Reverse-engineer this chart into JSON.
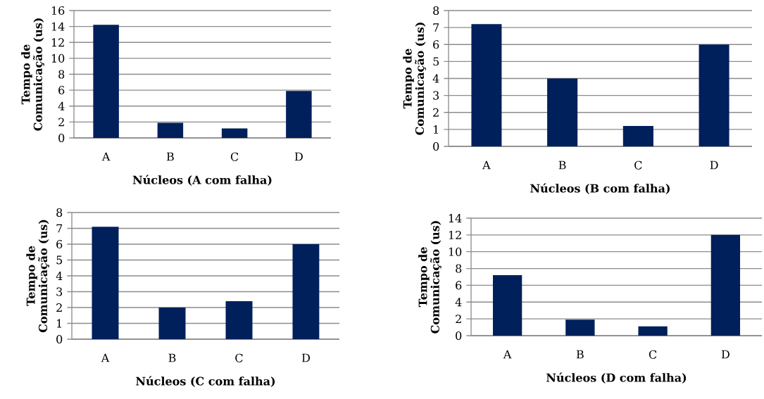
{
  "chart_data": [
    {
      "type": "bar",
      "categories": [
        "A",
        "B",
        "C",
        "D"
      ],
      "values": [
        14.2,
        1.9,
        1.2,
        5.9
      ],
      "color": "#00205b",
      "xlabel": "Núcleos (A com falha)",
      "ylabel": "Tempo de Comunicação (us)",
      "ylim": [
        0,
        16
      ],
      "yticks": [
        0,
        2,
        4,
        6,
        8,
        10,
        12,
        14,
        16
      ],
      "grid": "y"
    },
    {
      "type": "bar",
      "categories": [
        "A",
        "B",
        "C",
        "D"
      ],
      "values": [
        7.2,
        4.0,
        1.2,
        6.0
      ],
      "color": "#00205b",
      "xlabel": "Núcleos (B com falha)",
      "ylabel": "Tempo de Comunicação (us)",
      "ylim": [
        0,
        8
      ],
      "yticks": [
        0,
        1,
        2,
        3,
        4,
        5,
        6,
        7,
        8
      ],
      "grid": "y"
    },
    {
      "type": "bar",
      "categories": [
        "A",
        "B",
        "C",
        "D"
      ],
      "values": [
        7.1,
        2.0,
        2.4,
        6.0
      ],
      "color": "#00205b",
      "xlabel": "Núcleos (C com falha)",
      "ylabel": "Tempo de Comunicação (us)",
      "ylim": [
        0,
        8
      ],
      "yticks": [
        0,
        1,
        2,
        3,
        4,
        5,
        6,
        7,
        8
      ],
      "grid": "y"
    },
    {
      "type": "bar",
      "categories": [
        "A",
        "B",
        "C",
        "D"
      ],
      "values": [
        7.2,
        1.9,
        1.1,
        12.0
      ],
      "color": "#00205b",
      "xlabel": "Núcleos (D com falha)",
      "ylabel": "Tempo de Comunicação (us)",
      "ylim": [
        0,
        14
      ],
      "yticks": [
        0,
        2,
        4,
        6,
        8,
        10,
        12,
        14
      ],
      "grid": "y"
    }
  ]
}
